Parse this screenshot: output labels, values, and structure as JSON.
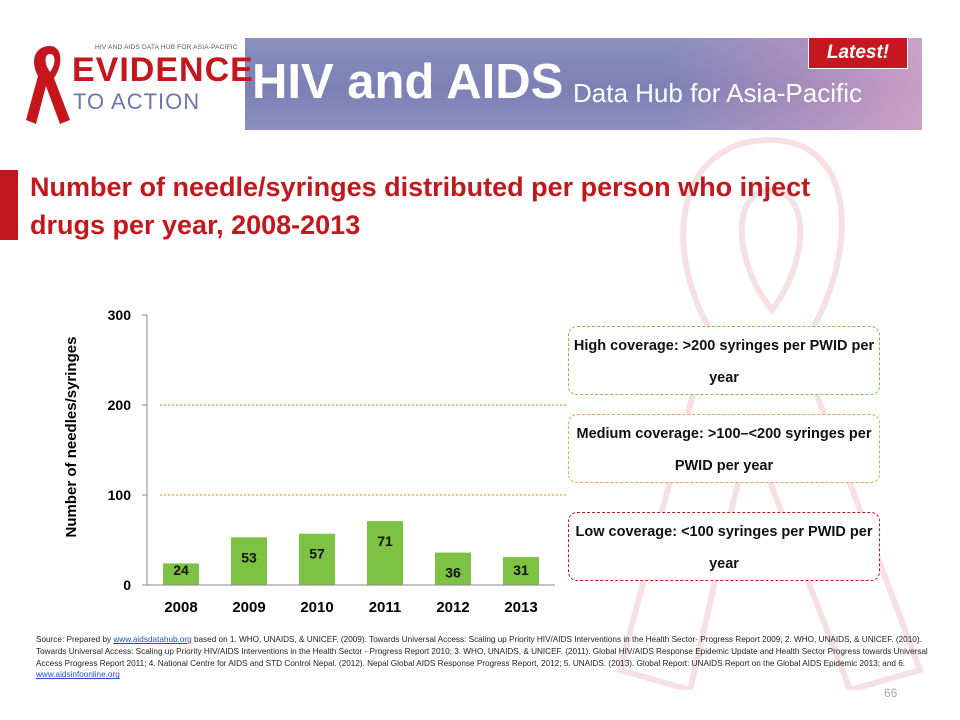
{
  "header": {
    "logo_topline": "HIV AND AIDS DATA HUB FOR ASIA-PACIFIC",
    "logo_line1": "EVIDENCE",
    "logo_line2": "TO ACTION",
    "title": "HIV and AIDS",
    "subtitle": "Data Hub for Asia-Pacific",
    "badge": "Latest!"
  },
  "page_title": "Number of needle/syringes distributed per person who inject drugs per year, 2008-2013",
  "chart_data": {
    "type": "bar",
    "title": "",
    "xlabel": "",
    "ylabel": "Number of needles/syringes",
    "categories": [
      "2008",
      "2009",
      "2010",
      "2011",
      "2012",
      "2013"
    ],
    "values": [
      24,
      53,
      57,
      71,
      36,
      31
    ],
    "ylim": [
      0,
      300
    ],
    "yticks": [
      0,
      100,
      200,
      300
    ],
    "reference_lines": [
      {
        "value": 200,
        "color": "#7cc242",
        "style": "dotted"
      },
      {
        "value": 100,
        "color": "#f0a050",
        "style": "dotted"
      }
    ],
    "bar_color": "#7dc243",
    "grid": false
  },
  "coverage": {
    "high": "High coverage: >200 syringes per PWID per year",
    "medium": "Medium coverage: >100–<200 syringes per PWID per year",
    "low": "Low coverage: <100 syringes per PWID per year"
  },
  "source": {
    "prefix": "Source: Prepared by ",
    "link1": "www.aidsdatahub.org",
    "body": " based on 1.  WHO, UNAIDS, & UNICEF. (2009). Towards Universal Access: Scaling up Priority HIV/AIDS Interventions in the Health Sector- Progress Report 2009; 2.  WHO, UNAIDS, & UNICEF. (2010). Towards Universal Access: Scaling up Priority HIV/AIDS Interventions in the Health Sector - Progress Report 2010;  3. WHO, UNAIDS, & UNICEF. (2011). Global HIV/AIDS Response Epidemic Update and Health Sector Progress towards Universal Access Progress Report 2011;  4. National Centre for AIDS and STD Control Nepal. (2012). Nepal Global AIDS Response Progress Report, 2012; 5. UNAIDS. (2013). Global Report: UNAIDS Report on the Global AIDS Epidemic 2013; and 6. ",
    "link2": "www.aidsinfoonline.org"
  },
  "page_number": "66"
}
